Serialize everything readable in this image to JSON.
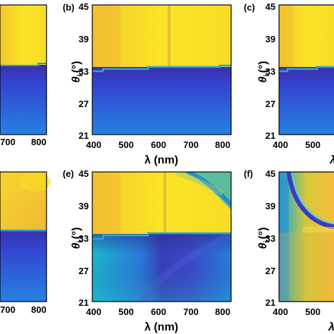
{
  "figure": {
    "panels": [
      {
        "label": "",
        "xticks": [
          "700",
          "800"
        ],
        "yticks": [],
        "xlabel": "",
        "ylabel": ""
      },
      {
        "label": "(b)",
        "xticks": [
          "400",
          "500",
          "600",
          "700",
          "800"
        ],
        "yticks": [
          "45",
          "39",
          "33",
          "27",
          "21"
        ],
        "xlabel": "λ (nm)",
        "ylabel_main": "θ",
        "ylabel_sub": "i",
        "ylabel_unit": "(°)"
      },
      {
        "label": "(c)",
        "xticks": [
          "400",
          "500"
        ],
        "yticks": [
          "45",
          "39",
          "33",
          "27",
          "21"
        ],
        "xlabel": "λ",
        "ylabel_main": "θ",
        "ylabel_sub": "i",
        "ylabel_unit": "(°)"
      },
      {
        "label": "",
        "xticks": [
          "700",
          "800"
        ],
        "yticks": [],
        "xlabel": "",
        "ylabel": ""
      },
      {
        "label": "(e)",
        "xticks": [
          "400",
          "500",
          "600",
          "700",
          "800"
        ],
        "yticks": [
          "45",
          "39",
          "33",
          "27",
          "21"
        ],
        "xlabel": "λ (nm)",
        "ylabel_main": "θ",
        "ylabel_sub": "i",
        "ylabel_unit": "(°)"
      },
      {
        "label": "(f)",
        "xticks": [
          "400",
          "500"
        ],
        "yticks": [
          "45",
          "39",
          "33",
          "27",
          "21"
        ],
        "xlabel": "λ",
        "ylabel_main": "θ",
        "ylabel_sub": "i",
        "ylabel_unit": "(°)"
      }
    ]
  },
  "colors": {
    "yellow": "#f6dc2a",
    "blue": "#3d3fc9",
    "cyan": "#1fb3c9"
  }
}
